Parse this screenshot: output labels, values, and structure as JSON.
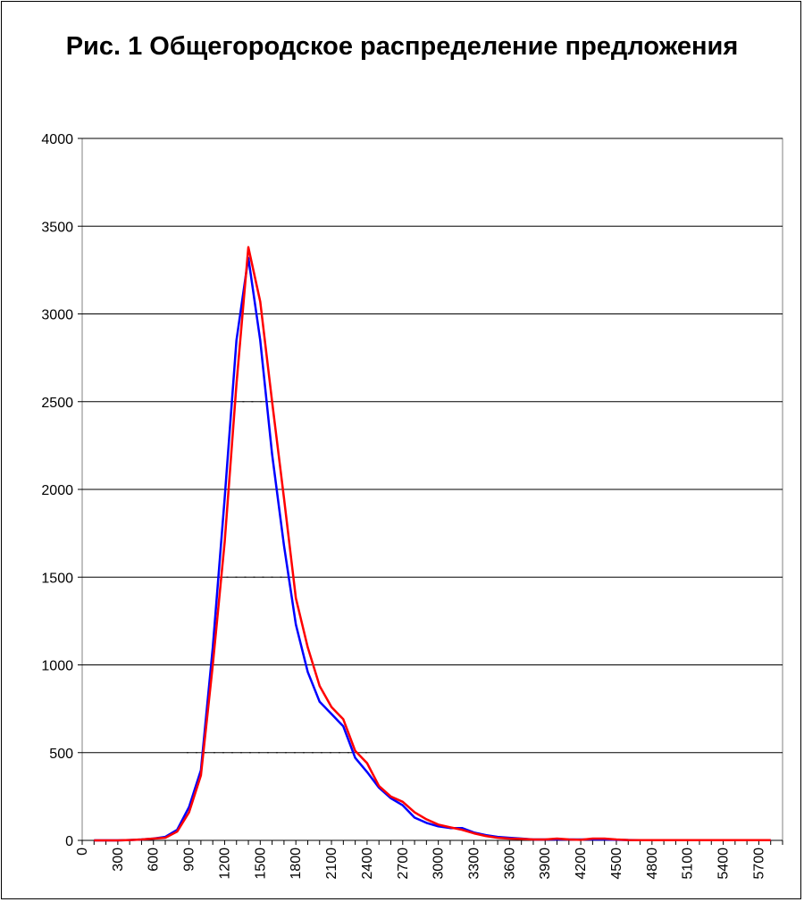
{
  "chart_data": {
    "type": "line",
    "title": "Рис. 1 Общегородское распределение предложения",
    "xlabel": "",
    "ylabel": "",
    "xlim": [
      0,
      5900
    ],
    "ylim": [
      0,
      4000
    ],
    "y_ticks": [
      0,
      500,
      1000,
      1500,
      2000,
      2500,
      3000,
      3500,
      4000
    ],
    "x_ticks": [
      0,
      300,
      600,
      900,
      1200,
      1500,
      1800,
      2100,
      2400,
      2700,
      3000,
      3300,
      3600,
      3900,
      4200,
      4500,
      4800,
      5100,
      5400,
      5700
    ],
    "grid": "horizontal",
    "legend": "none",
    "series": [
      {
        "color": "#0000ff",
        "x": [
          100,
          200,
          300,
          400,
          500,
          600,
          700,
          800,
          900,
          1000,
          1100,
          1200,
          1300,
          1400,
          1500,
          1600,
          1700,
          1800,
          1900,
          2000,
          2100,
          2200,
          2300,
          2400,
          2500,
          2600,
          2700,
          2800,
          2900,
          3000,
          3100,
          3200,
          3300,
          3400,
          3500,
          3600,
          3700,
          3800,
          3900,
          4000,
          4100,
          4200,
          4300,
          4400,
          4500,
          4600,
          4700,
          4800,
          4900,
          5000,
          5100,
          5200,
          5300,
          5400,
          5500,
          5600,
          5700,
          5800
        ],
        "values": [
          0,
          0,
          0,
          2,
          5,
          10,
          20,
          60,
          190,
          400,
          1100,
          1950,
          2850,
          3320,
          2850,
          2200,
          1680,
          1230,
          960,
          790,
          720,
          650,
          470,
          390,
          300,
          240,
          200,
          130,
          100,
          80,
          70,
          70,
          45,
          30,
          20,
          15,
          10,
          5,
          5,
          5,
          5,
          5,
          5,
          5,
          3,
          2,
          1,
          1,
          1,
          1,
          1,
          1,
          1,
          1,
          1,
          1,
          1,
          1
        ]
      },
      {
        "color": "#ff0000",
        "x": [
          100,
          200,
          300,
          400,
          500,
          600,
          700,
          800,
          900,
          1000,
          1100,
          1200,
          1300,
          1400,
          1500,
          1600,
          1700,
          1800,
          1900,
          2000,
          2100,
          2200,
          2300,
          2400,
          2500,
          2600,
          2700,
          2800,
          2900,
          3000,
          3100,
          3200,
          3300,
          3400,
          3500,
          3600,
          3700,
          3800,
          3900,
          4000,
          4100,
          4200,
          4300,
          4400,
          4500,
          4600,
          4700,
          4800,
          4900,
          5000,
          5100,
          5200,
          5300,
          5400,
          5500,
          5600,
          5700,
          5800
        ],
        "values": [
          0,
          0,
          0,
          2,
          5,
          10,
          15,
          50,
          160,
          370,
          1000,
          1700,
          2600,
          3380,
          3070,
          2500,
          1950,
          1380,
          1100,
          880,
          760,
          690,
          510,
          440,
          310,
          250,
          220,
          160,
          120,
          90,
          75,
          60,
          40,
          25,
          15,
          10,
          8,
          5,
          5,
          10,
          5,
          3,
          10,
          10,
          5,
          2,
          1,
          1,
          1,
          1,
          1,
          1,
          1,
          1,
          1,
          1,
          1,
          1
        ]
      }
    ],
    "dotted_markers": [
      {
        "y": 500,
        "x_from": 880,
        "x_to": 2400
      },
      {
        "y": 1000,
        "x_from": 1050,
        "x_to": 1940
      },
      {
        "y": 1500,
        "x_from": 1140,
        "x_to": 1690
      },
      {
        "y": 2000,
        "x_from": 1180,
        "x_to": 1590
      },
      {
        "y": 2500,
        "x_from": 1350,
        "x_to": 1510
      }
    ]
  }
}
